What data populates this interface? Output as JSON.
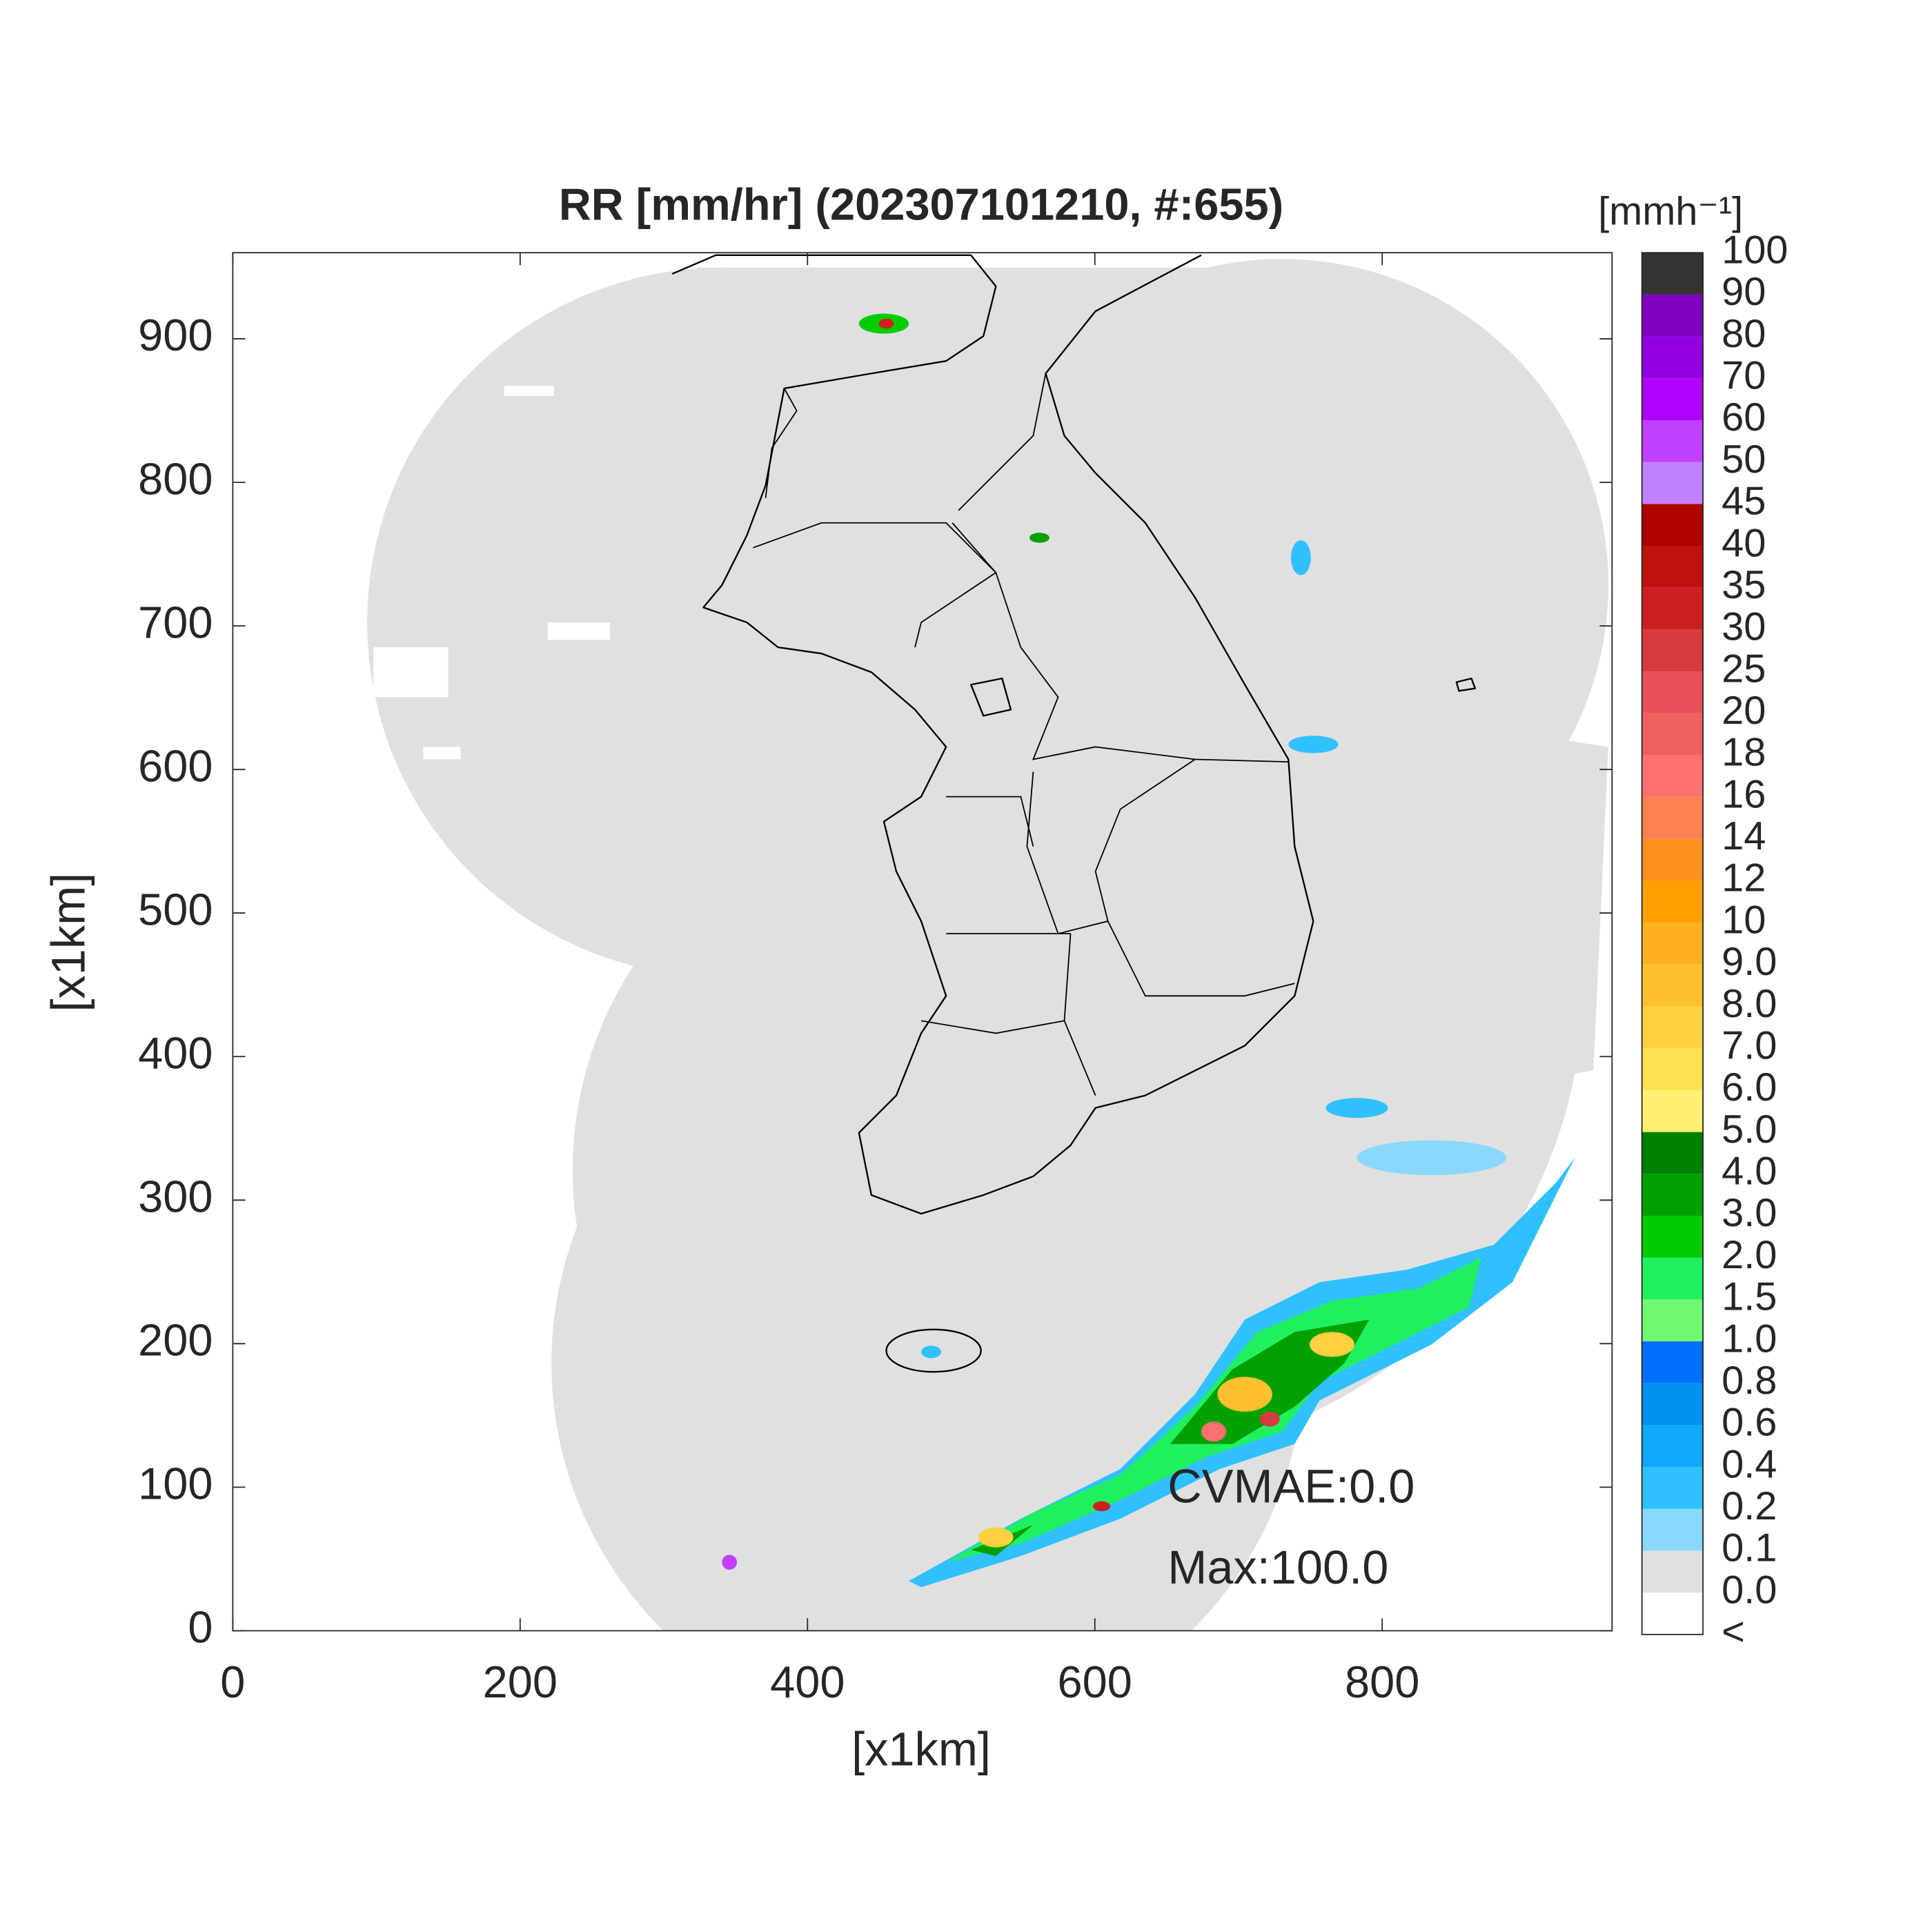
{
  "chart_data": {
    "type": "map",
    "title": "RR [mm/hr] (202307101210, #:655)",
    "xlabel": "[x1km]",
    "ylabel": "[x1km]",
    "xlim": [
      0,
      960
    ],
    "ylim": [
      0,
      960
    ],
    "xticks": [
      0,
      200,
      400,
      600,
      800
    ],
    "yticks": [
      0,
      100,
      200,
      300,
      400,
      500,
      600,
      700,
      800,
      900
    ],
    "colorbar": {
      "label": "[mmh⁻¹]",
      "levels": [
        "<",
        "0.0",
        "0.1",
        "0.2",
        "0.4",
        "0.6",
        "0.8",
        "1.0",
        "1.5",
        "2.0",
        "3.0",
        "4.0",
        "5.0",
        "6.0",
        "7.0",
        "8.0",
        "9.0",
        "10",
        "12",
        "14",
        "16",
        "18",
        "20",
        "25",
        "30",
        "35",
        "40",
        "45",
        "50",
        "60",
        "70",
        "80",
        "90",
        "100"
      ],
      "colors": [
        "#ffffff",
        "#e0e0e0",
        "#8ad8ff",
        "#30c0ff",
        "#10a8f8",
        "#0090f0",
        "#0070ff",
        "#70f870",
        "#20f060",
        "#00cc00",
        "#00a000",
        "#008000",
        "#fff070",
        "#ffe050",
        "#ffd040",
        "#ffc030",
        "#ffb020",
        "#ffa000",
        "#ff9020",
        "#ff8050",
        "#ff7070",
        "#f06060",
        "#e85058",
        "#d83a40",
        "#cc2020",
        "#c01010",
        "#b00000",
        "#c080ff",
        "#c040ff",
        "#b000ff",
        "#9000e0",
        "#8000c0",
        "#333333"
      ]
    },
    "annotations": [
      "CVMAE:0.0",
      "Max:100.0"
    ]
  }
}
